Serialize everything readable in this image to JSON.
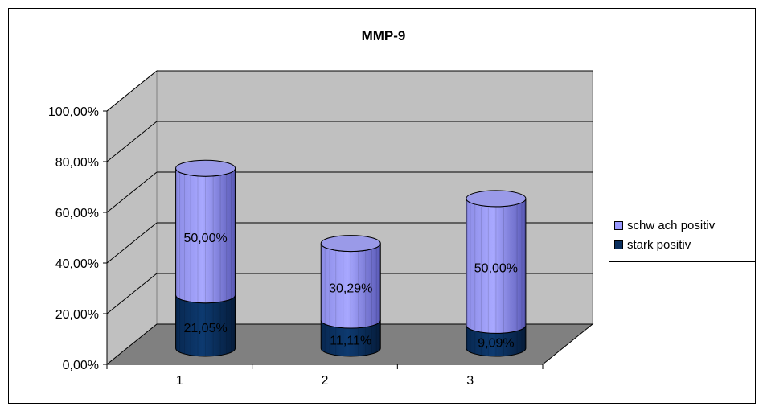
{
  "chart_data": {
    "type": "bar",
    "title": "MMP-9",
    "categories": [
      "1",
      "2",
      "3"
    ],
    "series": [
      {
        "name": "stark positiv",
        "values": [
          21.05,
          11.11,
          9.09
        ],
        "labels": [
          "21,05%",
          "11,11%",
          "9,09%"
        ],
        "color": "#0a2f5e"
      },
      {
        "name": "schw ach positiv",
        "values": [
          50.0,
          30.29,
          50.0
        ],
        "labels": [
          "50,00%",
          "30,29%",
          "50,00%"
        ],
        "color": "#9999ff"
      }
    ],
    "stacked": true,
    "ylim": [
      0,
      100
    ],
    "yticks": [
      "0,00%",
      "20,00%",
      "40,00%",
      "60,00%",
      "80,00%",
      "100,00%"
    ],
    "xlabel": "",
    "ylabel": "",
    "grid": true,
    "legend_position": "right",
    "colors": {
      "wall": "#c0c0c0",
      "floor": "#808080"
    }
  }
}
